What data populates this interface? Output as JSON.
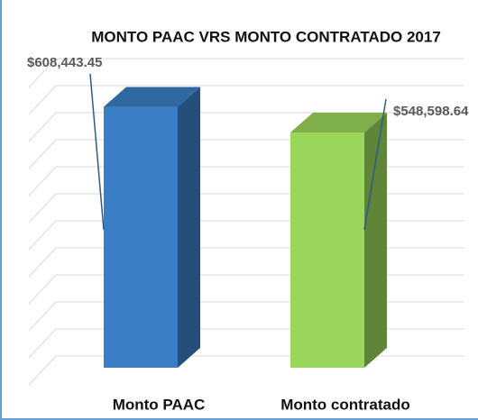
{
  "chart_data": {
    "type": "bar",
    "title": "MONTO PAAC VRS MONTO CONTRATADO 2017",
    "categories": [
      "Monto PAAC",
      "Monto contratado"
    ],
    "values": [
      608443.45,
      548598.64
    ],
    "value_labels": [
      "$608,443.45",
      "$548,598.64"
    ],
    "colors": [
      "#3a7fc6",
      "#9ad65a"
    ],
    "ylim": [
      0,
      700000
    ],
    "grid": true
  }
}
